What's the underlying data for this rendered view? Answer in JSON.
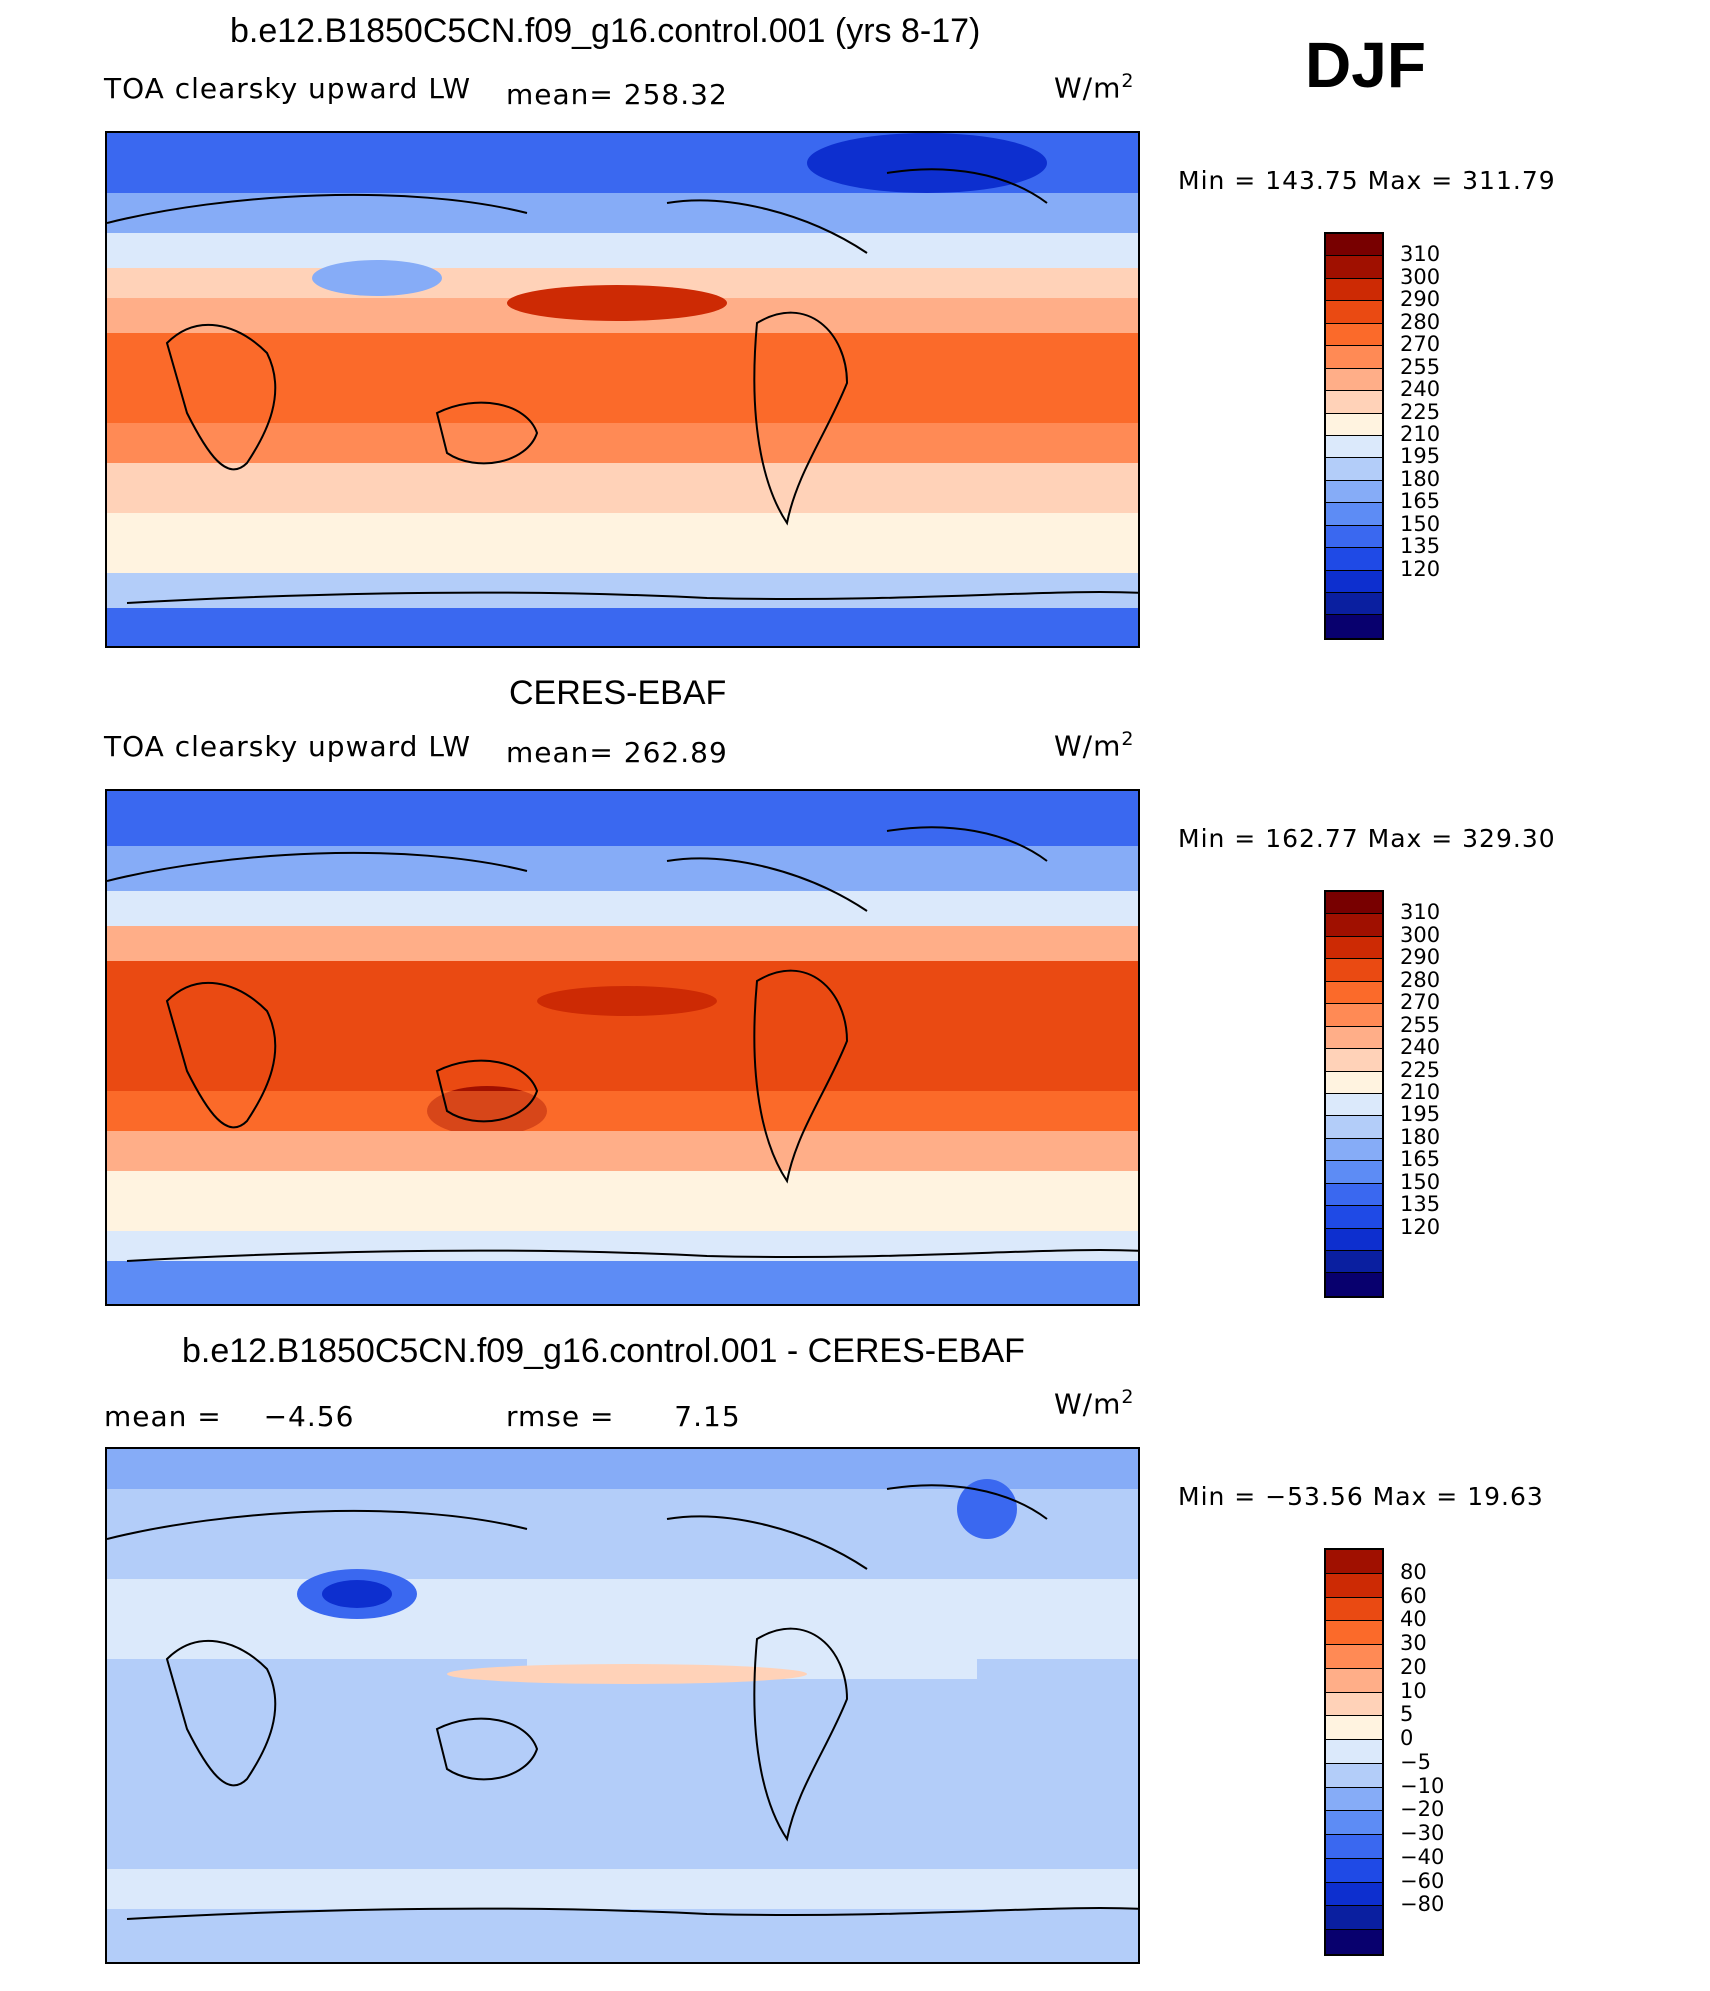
{
  "season": "DJF",
  "units_base": "W/m",
  "units_exp": "2",
  "colors": {
    "abs": [
      "#08006e",
      "#0a1fa0",
      "#0d2fcf",
      "#1f4ae6",
      "#3a68f0",
      "#5d8cf5",
      "#86acf7",
      "#b3cdf9",
      "#dbe9fb",
      "#fff3e0",
      "#ffd2b8",
      "#ffae88",
      "#ff8a55",
      "#fb6a2a",
      "#ea4a12",
      "#cd2a04",
      "#a01000",
      "#780000"
    ],
    "diff": [
      "#08006e",
      "#0a1fa0",
      "#0d2fcf",
      "#1f4ae6",
      "#3a68f0",
      "#5d8cf5",
      "#86acf7",
      "#b3cdf9",
      "#dbe9fb",
      "#fff3e0",
      "#ffd2b8",
      "#ffae88",
      "#ff8a55",
      "#fb6a2a",
      "#ea4a12",
      "#cd2a04",
      "#a01000"
    ]
  },
  "panels": [
    {
      "title": "b.e12.B1850C5CN.f09_g16.control.001 (yrs 8-17)",
      "left_label": "TOA clearsky upward LW",
      "mean_label": "mean=",
      "mean_value": "258.32",
      "minmax": "Min  =  143.75  Max  =  311.79",
      "kind": "abs",
      "cbar_labels": [
        "310",
        "300",
        "290",
        "280",
        "270",
        "255",
        "240",
        "225",
        "210",
        "195",
        "180",
        "165",
        "150",
        "135",
        "120"
      ]
    },
    {
      "title": "CERES-EBAF",
      "left_label": "TOA clearsky upward LW",
      "mean_label": "mean=",
      "mean_value": "262.89",
      "minmax": "Min  =  162.77  Max  =  329.30",
      "kind": "abs",
      "cbar_labels": [
        "310",
        "300",
        "290",
        "280",
        "270",
        "255",
        "240",
        "225",
        "210",
        "195",
        "180",
        "165",
        "150",
        "135",
        "120"
      ]
    },
    {
      "title": "b.e12.B1850C5CN.f09_g16.control.001 - CERES-EBAF",
      "mean_label": "mean  =",
      "mean_value": "−4.56",
      "rmse_label": "rmse  =",
      "rmse_value": "7.15",
      "minmax": "Min  =  −53.56  Max  =    19.63",
      "kind": "diff",
      "cbar_labels": [
        "80",
        "60",
        "40",
        "30",
        "20",
        "10",
        "5",
        "0",
        "−5",
        "−10",
        "−20",
        "−30",
        "−40",
        "−60",
        "−80"
      ]
    }
  ]
}
